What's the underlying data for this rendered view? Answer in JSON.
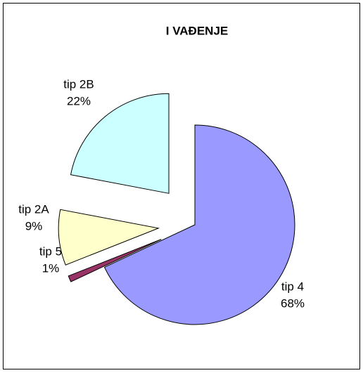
{
  "chart_data": {
    "type": "pie",
    "title": "I VAĐENJE",
    "categories": [
      "tip 4",
      "tip 5",
      "tip 2A",
      "tip 2B"
    ],
    "values": [
      68,
      1,
      9,
      22
    ],
    "value_labels": [
      "68%",
      "1%",
      "9%",
      "22%"
    ],
    "colors": [
      "#9999ff",
      "#993366",
      "#ffffcc",
      "#ccffff"
    ]
  }
}
